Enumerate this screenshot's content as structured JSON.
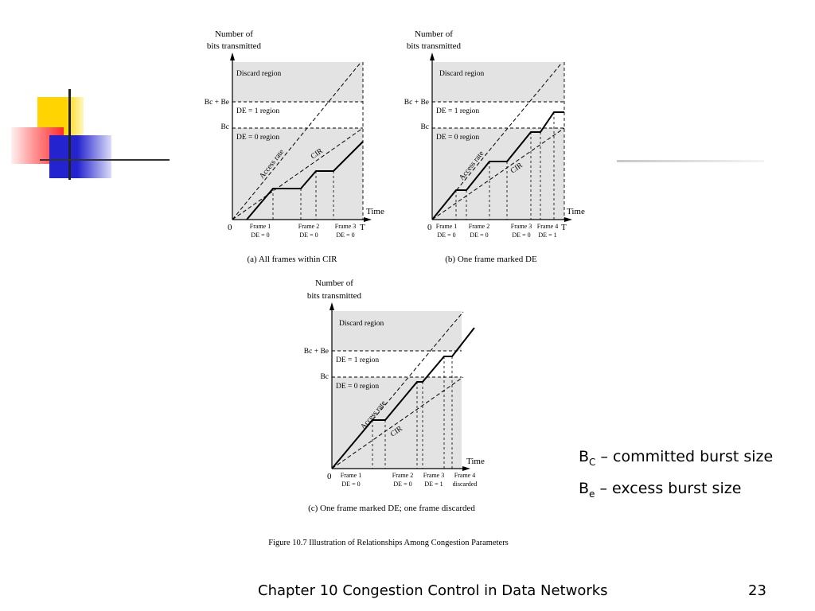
{
  "panels": [
    {
      "id": "a",
      "ylabel_line1": "Number of",
      "ylabel_line2": "bits transmitted",
      "discard_label": "Discard region",
      "bcbe_label": "Bc + Be",
      "bc_label": "Bc",
      "de1_label": "DE = 1 region",
      "de0_label": "DE = 0 region",
      "access_rate_label": "Access rate",
      "cir_label": "CIR",
      "time_label": "Time",
      "t_label": "T",
      "origin_label": "0",
      "frames": [
        {
          "name": "Frame 1",
          "de": "DE = 0"
        },
        {
          "name": "Frame 2",
          "de": "DE = 0"
        },
        {
          "name": "Frame 3",
          "de": "DE = 0"
        }
      ],
      "caption": "(a) All frames within CIR"
    },
    {
      "id": "b",
      "ylabel_line1": "Number of",
      "ylabel_line2": "bits transmitted",
      "discard_label": "Discard region",
      "bcbe_label": "Bc + Be",
      "bc_label": "Bc",
      "de1_label": "DE = 1 region",
      "de0_label": "DE = 0 region",
      "access_rate_label": "Access rate",
      "cir_label": "CIR",
      "time_label": "Time",
      "t_label": "T",
      "origin_label": "0",
      "frames": [
        {
          "name": "Frame 1",
          "de": "DE = 0"
        },
        {
          "name": "Frame 2",
          "de": "DE = 0"
        },
        {
          "name": "Frame 3",
          "de": "DE = 0"
        },
        {
          "name": "Frame 4",
          "de": "DE = 1"
        }
      ],
      "caption": "(b) One frame marked DE"
    },
    {
      "id": "c",
      "ylabel_line1": "Number of",
      "ylabel_line2": "bits transmitted",
      "discard_label": "Discard region",
      "bcbe_label": "Bc + Be",
      "bc_label": "Bc",
      "de1_label": "DE = 1 region",
      "de0_label": "DE = 0 region",
      "access_rate_label": "Access rate",
      "cir_label": "CIR",
      "time_label": "Time",
      "t_label": "",
      "origin_label": "0",
      "frames": [
        {
          "name": "Frame 1",
          "de": "DE = 0"
        },
        {
          "name": "Frame 2",
          "de": "DE = 0"
        },
        {
          "name": "Frame 3",
          "de": "DE = 1"
        },
        {
          "name": "Frame 4",
          "de": "discarded"
        }
      ],
      "caption": "(c) One frame marked DE; one frame discarded"
    }
  ],
  "figure_caption": "Figure 10.7  Illustration of Relationships Among Congestion Parameters",
  "legend": [
    {
      "symbol": "B",
      "subscript": "C",
      "text": " – committed burst size"
    },
    {
      "symbol": "B",
      "subscript": "e",
      "text": " – excess burst size"
    }
  ],
  "footer": {
    "chapter": "Chapter 10 Congestion Control in Data Networks",
    "page": "23"
  },
  "colors": {
    "region_fill": "#e3e3e3",
    "deco_yellow": "#ffd400",
    "deco_red": "#ff3b3b",
    "deco_blue": "#2b2bd6"
  }
}
